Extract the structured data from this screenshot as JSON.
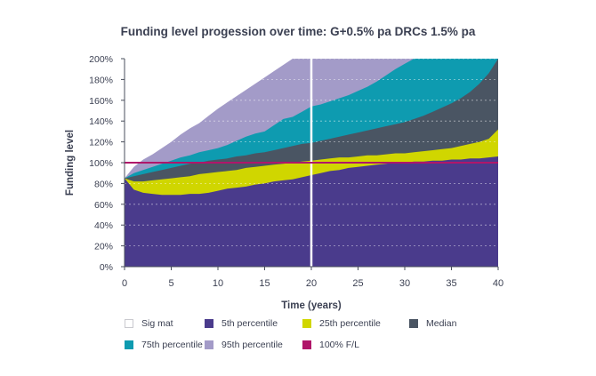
{
  "chart_data": {
    "type": "area",
    "title": "Funding level progession over time: G+0.5% pa DRCs 1.5% pa",
    "xlabel": "Time (years)",
    "ylabel": "Funding level",
    "xlim": [
      0,
      40
    ],
    "ylim": [
      0,
      2.0
    ],
    "x_ticks": [
      "0",
      "5",
      "10",
      "15",
      "20",
      "25",
      "30",
      "35",
      "40"
    ],
    "y_ticks": [
      "0%",
      "20%",
      "40%",
      "60%",
      "80%",
      "100%",
      "120%",
      "140%",
      "160%",
      "180%",
      "200%"
    ],
    "grid": "horizontal dashed",
    "x": [
      0,
      1,
      2,
      3,
      4,
      5,
      6,
      7,
      8,
      9,
      10,
      11,
      12,
      13,
      14,
      15,
      16,
      17,
      18,
      19,
      20,
      21,
      22,
      23,
      24,
      25,
      26,
      27,
      28,
      29,
      30,
      31,
      32,
      33,
      34,
      35,
      36,
      37,
      38,
      39,
      40
    ],
    "series": [
      {
        "name": "5th percentile",
        "color": "#4a3b8c",
        "values": [
          0.85,
          0.74,
          0.71,
          0.7,
          0.69,
          0.69,
          0.69,
          0.7,
          0.7,
          0.71,
          0.73,
          0.75,
          0.76,
          0.77,
          0.79,
          0.8,
          0.82,
          0.83,
          0.84,
          0.86,
          0.88,
          0.9,
          0.92,
          0.93,
          0.95,
          0.96,
          0.97,
          0.98,
          0.99,
          1.0,
          1.0,
          1.01,
          1.01,
          1.02,
          1.02,
          1.03,
          1.03,
          1.04,
          1.04,
          1.05,
          1.06
        ]
      },
      {
        "name": "25th percentile",
        "color": "#d0d600",
        "values": [
          0.85,
          0.82,
          0.82,
          0.83,
          0.84,
          0.85,
          0.86,
          0.87,
          0.89,
          0.9,
          0.91,
          0.92,
          0.93,
          0.95,
          0.96,
          0.97,
          0.98,
          0.99,
          1.0,
          1.01,
          1.02,
          1.03,
          1.04,
          1.05,
          1.05,
          1.06,
          1.07,
          1.07,
          1.08,
          1.09,
          1.09,
          1.1,
          1.11,
          1.12,
          1.13,
          1.14,
          1.16,
          1.18,
          1.2,
          1.23,
          1.32
        ]
      },
      {
        "name": "Median",
        "color": "#4a5563",
        "values": [
          0.85,
          0.87,
          0.89,
          0.91,
          0.93,
          0.95,
          0.97,
          0.99,
          1.0,
          1.02,
          1.03,
          1.04,
          1.06,
          1.07,
          1.09,
          1.1,
          1.12,
          1.14,
          1.16,
          1.18,
          1.19,
          1.21,
          1.23,
          1.25,
          1.27,
          1.29,
          1.31,
          1.33,
          1.35,
          1.37,
          1.39,
          1.42,
          1.45,
          1.49,
          1.53,
          1.57,
          1.62,
          1.68,
          1.76,
          1.86,
          2.0
        ]
      },
      {
        "name": "75th percentile",
        "color": "#0e9bb0",
        "values": [
          0.85,
          0.9,
          0.93,
          0.96,
          0.99,
          1.02,
          1.05,
          1.07,
          1.1,
          1.12,
          1.14,
          1.17,
          1.21,
          1.25,
          1.28,
          1.3,
          1.36,
          1.42,
          1.44,
          1.49,
          1.54,
          1.56,
          1.59,
          1.62,
          1.65,
          1.69,
          1.73,
          1.78,
          1.84,
          1.9,
          1.95,
          2.0,
          2.0,
          2.0,
          2.0,
          2.0,
          2.0,
          2.0,
          2.0,
          2.0,
          2.0
        ]
      },
      {
        "name": "95th percentile",
        "color": "#a39bc8",
        "values": [
          0.85,
          0.96,
          1.03,
          1.08,
          1.14,
          1.2,
          1.27,
          1.33,
          1.38,
          1.45,
          1.52,
          1.58,
          1.64,
          1.7,
          1.76,
          1.82,
          1.88,
          1.94,
          2.0,
          2.0,
          2.0,
          2.0,
          2.0,
          2.0,
          2.0,
          2.0,
          2.0,
          2.0,
          2.0,
          2.0,
          2.0,
          2.0,
          2.0,
          2.0,
          2.0,
          2.0,
          2.0,
          2.0,
          2.0,
          2.0,
          2.0
        ]
      }
    ],
    "reference_line": {
      "name": "100% F/L",
      "value": 1.0,
      "color": "#b0166a"
    },
    "marker_line": {
      "name": "Sig mat",
      "x": 20,
      "color": "#ffffff"
    },
    "legend": [
      {
        "label": "Sig mat",
        "color": "#ffffff"
      },
      {
        "label": "5th percentile",
        "color": "#4a3b8c"
      },
      {
        "label": "25th percentile",
        "color": "#d0d600"
      },
      {
        "label": "Median",
        "color": "#4a5563"
      },
      {
        "label": "75th percentile",
        "color": "#0e9bb0"
      },
      {
        "label": "95th percentile",
        "color": "#a39bc8"
      },
      {
        "label": "100% F/L",
        "color": "#b0166a"
      }
    ],
    "legend_position": "bottom"
  }
}
